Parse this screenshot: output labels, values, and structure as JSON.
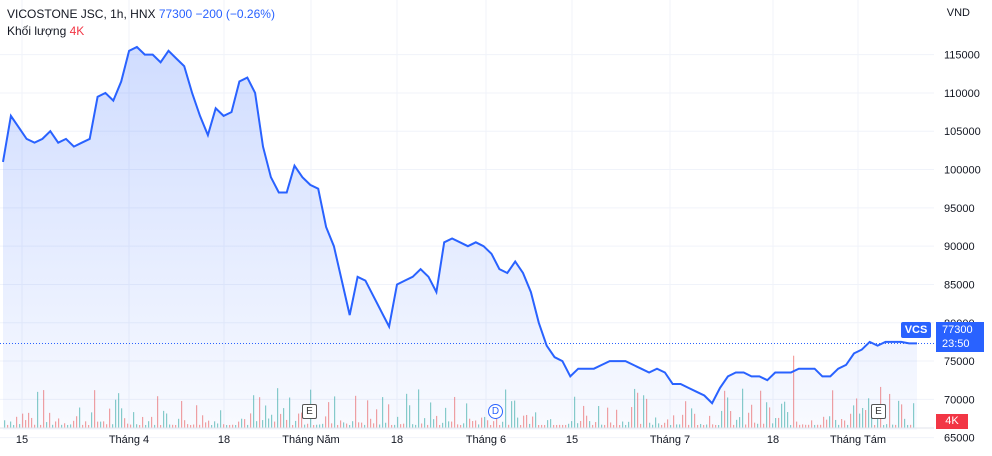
{
  "legend": {
    "title": "VICOSTONE JSC, 1h, HNX",
    "last": "77300",
    "change": "−200 (−0.26%)",
    "volume_label": "Khối lượng",
    "volume_value": "4K"
  },
  "currency": "VND",
  "badges": {
    "symbol": "VCS",
    "price": "77300",
    "countdown": "23:50",
    "volume": "4K"
  },
  "markers": [
    {
      "type": "E",
      "label": "E"
    },
    {
      "type": "D",
      "label": "D"
    },
    {
      "type": "E",
      "label": "E"
    }
  ],
  "colors": {
    "line": "#2962ff",
    "area_top": "#d6e0fc",
    "vol_up": "#26a69a",
    "vol_down": "#ef5350"
  },
  "chart_data": {
    "type": "area",
    "title": "VICOSTONE JSC, 1h, HNX",
    "ylabel": "VND",
    "ylim": [
      66000,
      119000
    ],
    "yticks": [
      115000,
      110000,
      105000,
      100000,
      95000,
      90000,
      85000,
      80000,
      75000,
      70000,
      65000
    ],
    "ytick_labels": [
      "115000",
      "110000",
      "105000",
      "100000",
      "95000",
      "90000",
      "85000",
      "80000",
      "75000",
      "70000",
      "65000"
    ],
    "x_ticks": [
      "15",
      "Tháng 4",
      "18",
      "Tháng Năm",
      "18",
      "Tháng 6",
      "15",
      "Tháng 7",
      "18",
      "Tháng Tám"
    ],
    "last_value": 77300,
    "series": [
      {
        "x": [
          0,
          1,
          2,
          3,
          4,
          5,
          6,
          7,
          8,
          9,
          10,
          11,
          12,
          13,
          14,
          15,
          16,
          17,
          18,
          19,
          20,
          21,
          22,
          23,
          24,
          25,
          26,
          27,
          28,
          29,
          30,
          31,
          32,
          33,
          34,
          35,
          36,
          37,
          38,
          39,
          40,
          41,
          42,
          43,
          44,
          45,
          46,
          47,
          48,
          49,
          50,
          51,
          52,
          53,
          54,
          55,
          56,
          57,
          58,
          59,
          60,
          61,
          62,
          63,
          64,
          65,
          66,
          67,
          68,
          69,
          70,
          71,
          72,
          73,
          74,
          75,
          76,
          77,
          78,
          79,
          80,
          81,
          82,
          83,
          84,
          85,
          86,
          87,
          88,
          89,
          90,
          91,
          92,
          93,
          94,
          95,
          96,
          97,
          98,
          99,
          100,
          101,
          102,
          103,
          104,
          105,
          106,
          107,
          108,
          109,
          110,
          111,
          112,
          113,
          114,
          115,
          116,
          117,
          118,
          119,
          120,
          121,
          122,
          123,
          124,
          125,
          126,
          127,
          128,
          129,
          130,
          131,
          132,
          133,
          134,
          135,
          136,
          137,
          138,
          139,
          140,
          141,
          142,
          143,
          144,
          145,
          146,
          147,
          148,
          149,
          150
        ],
        "values": [
          101000,
          107000,
          105500,
          104000,
          103500,
          104000,
          105000,
          103500,
          104000,
          103000,
          103500,
          104000,
          109500,
          110000,
          109000,
          111500,
          115500,
          116000,
          115000,
          115000,
          114000,
          115500,
          114500,
          113500,
          110000,
          107000,
          104500,
          108000,
          107000,
          107500,
          111500,
          112000,
          110000,
          103000,
          99000,
          97000,
          97000,
          100500,
          99000,
          98000,
          97500,
          92500,
          90000,
          85500,
          81000,
          86000,
          85500,
          83500,
          81500,
          79500,
          85000,
          85500,
          86000,
          87000,
          86000,
          84000,
          90500,
          91000,
          90500,
          90000,
          90500,
          90000,
          89000,
          87000,
          86500,
          88000,
          86500,
          84000,
          80000,
          77000,
          75500,
          75000,
          73000,
          74000,
          74000,
          74000,
          74500,
          75000,
          75000,
          75000,
          74500,
          74000,
          73500,
          74000,
          73500,
          72000,
          72000,
          71500,
          71000,
          70500,
          69500,
          71500,
          73000,
          73500,
          73500,
          73000,
          73000,
          72500,
          73500,
          73500,
          73500,
          74000,
          74000,
          74000,
          73000,
          73000,
          74000,
          74500,
          76000,
          76500,
          77500,
          77000,
          77500,
          77500,
          77500,
          77300,
          77300,
          77300,
          77300,
          77300,
          77300,
          77300,
          77300,
          77300,
          77300,
          77300,
          77300,
          77300,
          77300,
          77300,
          77300,
          77300,
          77300,
          77300,
          77300,
          77300,
          77300,
          77300,
          77300,
          77300,
          77300,
          77300,
          77300,
          77300,
          77300,
          77300,
          77300,
          77300,
          77300,
          77300,
          77300
        ]
      }
    ]
  }
}
